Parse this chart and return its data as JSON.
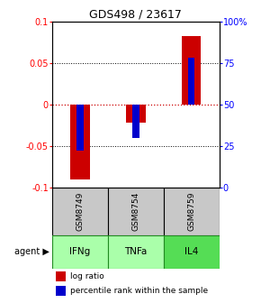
{
  "title": "GDS498 / 23617",
  "samples": [
    "GSM8749",
    "GSM8754",
    "GSM8759"
  ],
  "agents": [
    "IFNg",
    "TNFa",
    "IL4"
  ],
  "log_ratio": [
    -0.09,
    -0.022,
    0.082
  ],
  "percentile": [
    0.22,
    0.3,
    0.78
  ],
  "ylim_left": [
    -0.1,
    0.1
  ],
  "ylim_right": [
    0.0,
    1.0
  ],
  "yticks_left": [
    -0.1,
    -0.05,
    0.0,
    0.05,
    0.1
  ],
  "ytick_labels_left": [
    "-0.1",
    "-0.05",
    "0",
    "0.05",
    "0.1"
  ],
  "ytick_labels_right": [
    "0",
    "25",
    "50",
    "75",
    "100%"
  ],
  "ytick_vals_right": [
    0.0,
    0.25,
    0.5,
    0.75,
    1.0
  ],
  "bar_color_red": "#cc0000",
  "bar_color_blue": "#0000cc",
  "sample_box_color": "#c8c8c8",
  "agent_box_color_light": "#aaffaa",
  "agent_box_color_dark": "#55dd55",
  "agent_box_border": "#228B22",
  "zero_line_color": "#cc0000",
  "bar_width": 0.35,
  "percentile_bar_width": 0.12
}
